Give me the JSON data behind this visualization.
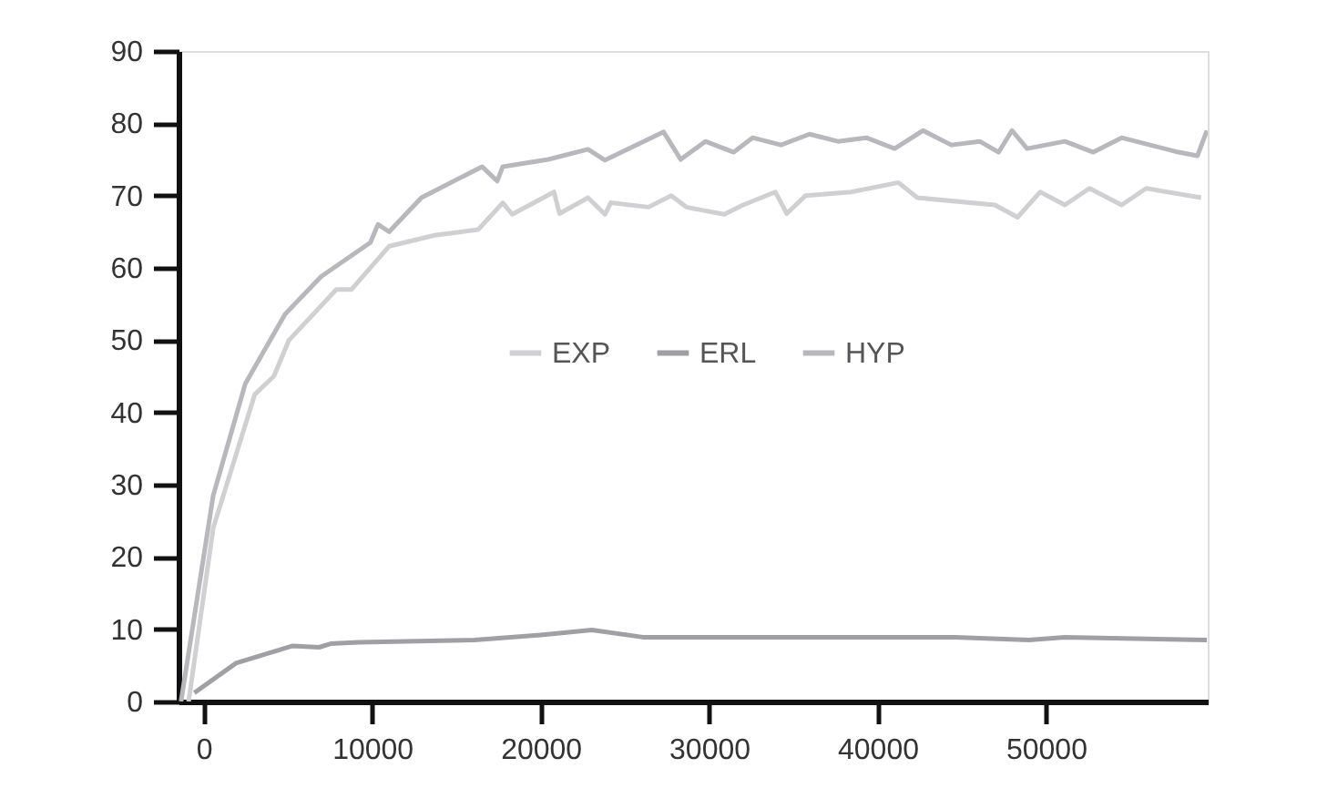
{
  "chart_data": {
    "type": "line",
    "xlim": [
      -1500,
      59600
    ],
    "xticks": [
      0,
      10000,
      20000,
      30000,
      40000,
      50000
    ],
    "ylim": [
      0,
      90
    ],
    "yticks": [
      0,
      10,
      20,
      30,
      40,
      50,
      60,
      70,
      80,
      90
    ],
    "grid": false,
    "legend": "center",
    "marker": "none",
    "line_style": "solid",
    "series": [
      {
        "name": "EXP",
        "color": "#d0d0d2",
        "x": [
          -900,
          560,
          3030,
          4160,
          5060,
          7870,
          8760,
          11010,
          13710,
          16290,
          17750,
          18310,
          20790,
          21120,
          22810,
          23820,
          24160,
          26400,
          27750,
          28650,
          30900,
          32020,
          33930,
          34610,
          35730,
          38430,
          41240,
          42360,
          46970,
          48310,
          49660,
          51120,
          52580,
          54490,
          55950,
          59210
        ],
        "values": [
          0,
          24,
          42.5,
          45,
          50,
          57,
          57,
          63,
          64.5,
          65.3,
          69,
          67.4,
          70.5,
          67.5,
          69.7,
          67.4,
          69,
          68.4,
          70,
          68.4,
          67.4,
          68.7,
          70.5,
          67.5,
          70,
          70.5,
          71.8,
          69.7,
          68.7,
          67,
          70.5,
          68.7,
          71,
          68.7,
          71,
          69.7
        ]
      },
      {
        "name": "ERL",
        "color": "#a0a0a4",
        "x": [
          -560,
          1910,
          5280,
          6850,
          7530,
          9210,
          16070,
          20000,
          23040,
          26070,
          44610,
          48990,
          51120,
          59550
        ],
        "values": [
          1.2,
          5.3,
          7.7,
          7.5,
          8,
          8.2,
          8.5,
          9.2,
          9.9,
          8.9,
          8.9,
          8.5,
          8.9,
          8.5
        ]
      },
      {
        "name": "HYP",
        "color": "#b8b8bc",
        "x": [
          -1350,
          560,
          2470,
          4830,
          6970,
          9890,
          10340,
          11010,
          12920,
          16520,
          17420,
          17750,
          20450,
          22810,
          23820,
          27300,
          28310,
          29780,
          31460,
          32580,
          34270,
          35960,
          37640,
          39330,
          41010,
          42700,
          44380,
          46070,
          47190,
          47980,
          48880,
          51120,
          52810,
          54490,
          56180,
          57870,
          58990,
          59550
        ],
        "values": [
          0,
          28.5,
          44,
          53.6,
          58.8,
          63.5,
          66,
          65,
          69.7,
          74,
          72,
          74,
          75,
          76.4,
          74.9,
          78.8,
          75,
          77.5,
          76,
          78,
          77,
          78.5,
          77.5,
          78,
          76.5,
          79,
          77,
          77.5,
          76,
          79,
          76.5,
          77.5,
          76,
          78,
          77,
          76,
          75.5,
          79
        ]
      }
    ]
  }
}
